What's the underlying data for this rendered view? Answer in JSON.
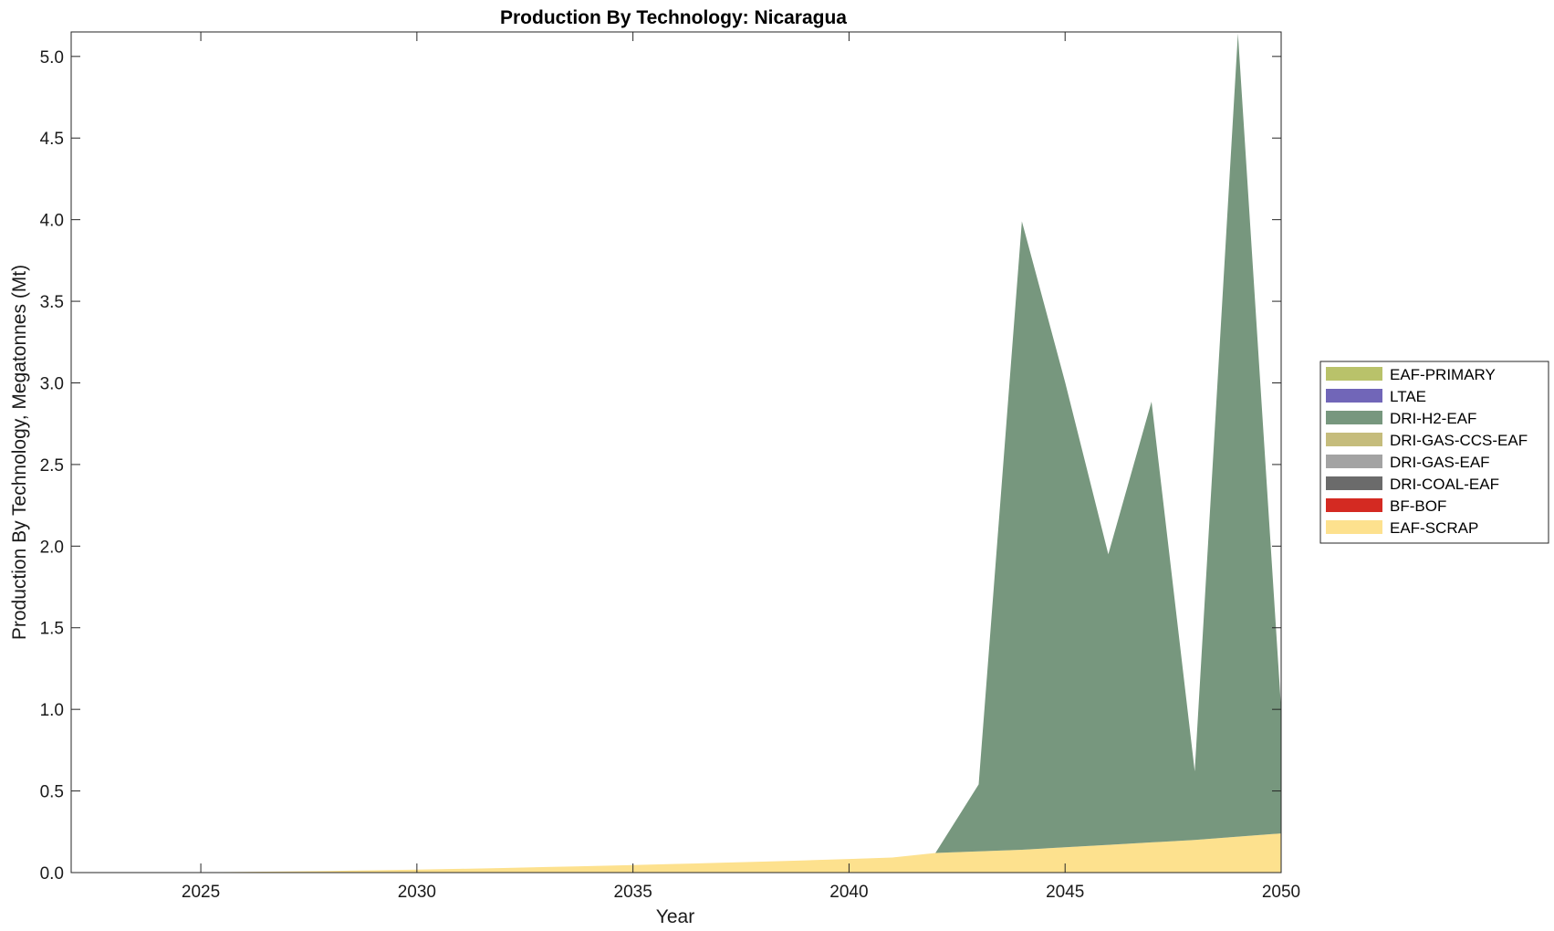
{
  "chart_data": {
    "type": "area",
    "stacked": true,
    "title": "Production By Technology: Nicaragua",
    "xlabel": "Year",
    "ylabel": "Production By Technology, Megatonnes (Mt)",
    "xlim": [
      2022,
      2050
    ],
    "ylim": [
      0,
      5.15
    ],
    "x_ticks": [
      2025,
      2030,
      2035,
      2040,
      2045,
      2050
    ],
    "y_ticks": [
      0.0,
      0.5,
      1.0,
      1.5,
      2.0,
      2.5,
      3.0,
      3.5,
      4.0,
      4.5,
      5.0
    ],
    "y_tick_labels": [
      "0.0",
      "0.5",
      "1.0",
      "1.5",
      "2.0",
      "2.5",
      "3.0",
      "3.5",
      "4.0",
      "4.5",
      "5.0"
    ],
    "grid": false,
    "legend_position": "outside-right",
    "x": [
      2022,
      2023,
      2024,
      2025,
      2026,
      2027,
      2028,
      2029,
      2030,
      2031,
      2032,
      2033,
      2034,
      2035,
      2036,
      2037,
      2038,
      2039,
      2040,
      2041,
      2042,
      2043,
      2044,
      2045,
      2046,
      2047,
      2048,
      2049,
      2050
    ],
    "series": [
      {
        "name": "EAF-SCRAP",
        "color": "#fde18e",
        "values": [
          0.0,
          0.0,
          0.0,
          0.002,
          0.004,
          0.007,
          0.01,
          0.014,
          0.018,
          0.023,
          0.028,
          0.034,
          0.04,
          0.046,
          0.053,
          0.06,
          0.067,
          0.075,
          0.083,
          0.092,
          0.12,
          0.13,
          0.14,
          0.155,
          0.17,
          0.185,
          0.2,
          0.22,
          0.24
        ]
      },
      {
        "name": "BF-BOF",
        "color": "#d42a22",
        "values": [
          0,
          0,
          0,
          0,
          0,
          0,
          0,
          0,
          0,
          0,
          0,
          0,
          0,
          0,
          0,
          0,
          0,
          0,
          0,
          0,
          0,
          0,
          0,
          0,
          0,
          0,
          0,
          0,
          0
        ]
      },
      {
        "name": "DRI-COAL-EAF",
        "color": "#6b6b6b",
        "values": [
          0,
          0,
          0,
          0,
          0,
          0,
          0,
          0,
          0,
          0,
          0,
          0,
          0,
          0,
          0,
          0,
          0,
          0,
          0,
          0,
          0,
          0,
          0,
          0,
          0,
          0,
          0,
          0,
          0
        ]
      },
      {
        "name": "DRI-GAS-EAF",
        "color": "#a3a3a3",
        "values": [
          0,
          0,
          0,
          0,
          0,
          0,
          0,
          0,
          0,
          0,
          0,
          0,
          0,
          0,
          0,
          0,
          0,
          0,
          0,
          0,
          0,
          0,
          0,
          0,
          0,
          0,
          0,
          0,
          0
        ]
      },
      {
        "name": "DRI-GAS-CCS-EAF",
        "color": "#c5bc7c",
        "values": [
          0,
          0,
          0,
          0,
          0,
          0,
          0,
          0,
          0,
          0,
          0,
          0,
          0,
          0,
          0,
          0,
          0,
          0,
          0,
          0,
          0,
          0,
          0,
          0,
          0,
          0,
          0,
          0,
          0
        ]
      },
      {
        "name": "DRI-H2-EAF",
        "color": "#77977e",
        "values": [
          0,
          0,
          0,
          0,
          0,
          0,
          0,
          0,
          0,
          0,
          0,
          0,
          0,
          0,
          0,
          0,
          0,
          0,
          0,
          0,
          0,
          0.41,
          3.85,
          2.85,
          1.78,
          2.7,
          0.42,
          4.92,
          0.76
        ]
      },
      {
        "name": "LTAE",
        "color": "#7166b8",
        "values": [
          0,
          0,
          0,
          0,
          0,
          0,
          0,
          0,
          0,
          0,
          0,
          0,
          0,
          0,
          0,
          0,
          0,
          0,
          0,
          0,
          0,
          0,
          0,
          0,
          0,
          0,
          0,
          0,
          0
        ]
      },
      {
        "name": "EAF-PRIMARY",
        "color": "#b9c26a",
        "values": [
          0,
          0,
          0,
          0,
          0,
          0,
          0,
          0,
          0,
          0,
          0,
          0,
          0,
          0,
          0,
          0,
          0,
          0,
          0,
          0,
          0,
          0,
          0,
          0,
          0,
          0,
          0,
          0,
          0
        ]
      }
    ],
    "legend_order": [
      "EAF-PRIMARY",
      "LTAE",
      "DRI-H2-EAF",
      "DRI-GAS-CCS-EAF",
      "DRI-GAS-EAF",
      "DRI-COAL-EAF",
      "BF-BOF",
      "EAF-SCRAP"
    ]
  }
}
